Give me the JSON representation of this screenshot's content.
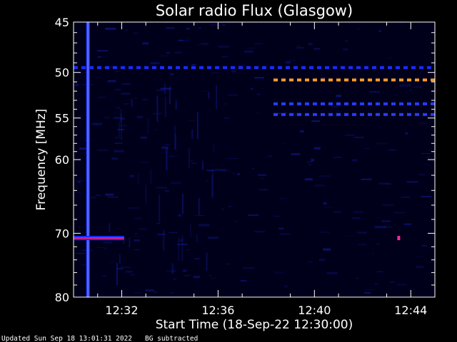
{
  "chart_data": {
    "type": "heatmap",
    "title": "Solar radio Flux (Glasgow)",
    "xlabel": "Start Time (18-Sep-22 12:30:00)",
    "ylabel": "Frequency [MHz]",
    "x_unit": "minutes after 12:30:00",
    "xlim": [
      0,
      15
    ],
    "ylim": [
      45,
      80
    ],
    "y_scale": "log",
    "x_ticks": [
      {
        "value": 2,
        "label": "12:32"
      },
      {
        "value": 6,
        "label": "12:36"
      },
      {
        "value": 10,
        "label": "12:40"
      },
      {
        "value": 14,
        "label": "12:44"
      }
    ],
    "y_ticks": [
      {
        "value": 45,
        "label": "45"
      },
      {
        "value": 50,
        "label": "50"
      },
      {
        "value": 55,
        "label": "55"
      },
      {
        "value": 60,
        "label": "60"
      },
      {
        "value": 70,
        "label": "70"
      },
      {
        "value": 80,
        "label": "80"
      }
    ],
    "features": [
      {
        "kind": "vertical",
        "x": 0.6,
        "f_start": 45,
        "f_end": 80,
        "color": "#2a3cff",
        "core": "#6a7cff"
      },
      {
        "kind": "horizontal",
        "f": 49.5,
        "x_start": 0,
        "x_end": 15,
        "color": "#1a2cff",
        "dashed": true
      },
      {
        "kind": "horizontal",
        "f": 50.8,
        "x_start": 8.3,
        "x_end": 15,
        "color": "#ff9a2a",
        "dashed": true
      },
      {
        "kind": "horizontal",
        "f": 53.4,
        "x_start": 8.3,
        "x_end": 15,
        "color": "#2a3cff",
        "dashed": true
      },
      {
        "kind": "horizontal",
        "f": 54.6,
        "x_start": 8.3,
        "x_end": 15,
        "color": "#2a3cff",
        "dashed": true
      },
      {
        "kind": "horizontal",
        "f": 70.7,
        "x_start": 0,
        "x_end": 2.1,
        "color": "#ff1a6a",
        "dashed": false
      },
      {
        "kind": "spot",
        "x": 13.5,
        "f": 70.7,
        "color": "#ff2aa0"
      }
    ]
  },
  "footer": {
    "updated": "Updated Sun Sep 18 13:01:31 2022",
    "bg_note": "BG subtracted"
  }
}
